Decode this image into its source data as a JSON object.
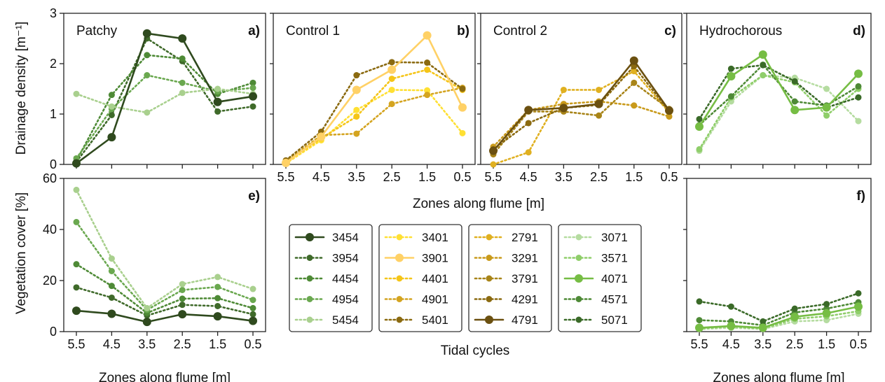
{
  "figure": {
    "shared_x_label": "Zones along flume [m]",
    "legend_title": "Tidal cycles",
    "ylabel_top": "Drainage density [m⁻¹]",
    "ylabel_bottom": "Vegetation cover [%]"
  },
  "chart_data": [
    {
      "id": "a",
      "type": "line",
      "title": "Patchy",
      "panel_label": "a)",
      "x": [
        5.5,
        4.5,
        3.5,
        2.5,
        1.5,
        0.5
      ],
      "xtick_labels": [
        "5.5",
        "4.5",
        "3.5",
        "2.5",
        "1.5",
        "0.5"
      ],
      "ylim": [
        0,
        3
      ],
      "yticks": [
        0,
        1,
        2,
        3
      ],
      "ylabel": "Drainage density [m⁻¹]",
      "series": [
        {
          "name": "3454",
          "color": "#2f4a1e",
          "style": "solid",
          "values": [
            0.02,
            0.54,
            2.6,
            2.5,
            1.24,
            1.35
          ]
        },
        {
          "name": "3954",
          "color": "#3f6a2a",
          "style": "dotted",
          "values": [
            0.05,
            0.98,
            2.5,
            2.05,
            1.05,
            1.15
          ]
        },
        {
          "name": "4454",
          "color": "#4e8a36",
          "style": "dotted",
          "values": [
            0.07,
            1.38,
            2.17,
            2.1,
            1.4,
            1.62
          ]
        },
        {
          "name": "4954",
          "color": "#6aa84f",
          "style": "dotted",
          "values": [
            0.12,
            1.1,
            1.77,
            1.62,
            1.45,
            1.52
          ]
        },
        {
          "name": "5454",
          "color": "#a9d08e",
          "style": "dotted",
          "values": [
            1.4,
            1.15,
            1.03,
            1.42,
            1.5,
            1.4
          ]
        }
      ]
    },
    {
      "id": "b",
      "type": "line",
      "title": "Control 1",
      "panel_label": "b)",
      "x": [
        5.5,
        4.5,
        3.5,
        2.5,
        1.5,
        0.5
      ],
      "xtick_labels": [
        "5.5",
        "4.5",
        "3.5",
        "2.5",
        "1.5",
        "0.5"
      ],
      "ylim": [
        0,
        3
      ],
      "series": [
        {
          "name": "3401",
          "color": "#ffe033",
          "style": "dotted",
          "values": [
            0.02,
            0.48,
            1.08,
            1.48,
            1.47,
            0.62
          ]
        },
        {
          "name": "3901",
          "color": "#ffd166",
          "style": "solid",
          "values": [
            0.03,
            0.55,
            1.48,
            1.88,
            2.56,
            1.13
          ]
        },
        {
          "name": "4401",
          "color": "#f5c518",
          "style": "dotted",
          "values": [
            0.04,
            0.52,
            0.95,
            1.7,
            1.88,
            1.48
          ]
        },
        {
          "name": "4901",
          "color": "#d4a420",
          "style": "dotted",
          "values": [
            0.06,
            0.58,
            0.61,
            1.2,
            1.38,
            1.52
          ]
        },
        {
          "name": "5401",
          "color": "#8b6a10",
          "style": "dotted",
          "values": [
            0.08,
            0.65,
            1.77,
            2.03,
            2.02,
            1.5
          ]
        }
      ]
    },
    {
      "id": "c",
      "type": "line",
      "title": "Control 2",
      "panel_label": "c)",
      "x": [
        5.5,
        4.5,
        3.5,
        2.5,
        1.5,
        0.5
      ],
      "xtick_labels": [
        "5.5",
        "4.5",
        "3.5",
        "2.5",
        "1.5",
        "0.5"
      ],
      "ylim": [
        0,
        3
      ],
      "series": [
        {
          "name": "2791",
          "color": "#e0b020",
          "style": "dotted",
          "values": [
            0.0,
            0.24,
            1.48,
            1.48,
            1.85,
            1.03
          ]
        },
        {
          "name": "3291",
          "color": "#c99a1a",
          "style": "dotted",
          "values": [
            0.35,
            1.08,
            1.2,
            1.25,
            1.17,
            0.95
          ]
        },
        {
          "name": "3791",
          "color": "#a88418",
          "style": "dotted",
          "values": [
            0.2,
            1.05,
            1.05,
            0.97,
            1.62,
            1.1
          ]
        },
        {
          "name": "4291",
          "color": "#8b6a10",
          "style": "dotted",
          "values": [
            0.3,
            0.82,
            1.12,
            1.18,
            1.95,
            1.05
          ]
        },
        {
          "name": "4791",
          "color": "#6b5010",
          "style": "solid",
          "values": [
            0.27,
            1.08,
            1.12,
            1.2,
            2.06,
            1.07
          ]
        }
      ]
    },
    {
      "id": "d",
      "type": "line",
      "title": "Hydrochorous",
      "panel_label": "d)",
      "x": [
        5.5,
        4.5,
        3.5,
        2.5,
        1.5,
        0.5
      ],
      "xtick_labels": [
        "5.5",
        "4.5",
        "3.5",
        "2.5",
        "1.5",
        "0.5"
      ],
      "ylim": [
        0,
        3
      ],
      "series": [
        {
          "name": "3071",
          "color": "#b5dca0",
          "style": "dotted",
          "values": [
            0.27,
            1.25,
            1.77,
            1.72,
            1.5,
            0.86
          ]
        },
        {
          "name": "3571",
          "color": "#8fce6a",
          "style": "dotted",
          "values": [
            0.3,
            1.33,
            1.77,
            1.63,
            0.97,
            1.5
          ]
        },
        {
          "name": "4071",
          "color": "#76bd44",
          "style": "solid",
          "values": [
            0.75,
            1.75,
            2.18,
            1.08,
            1.13,
            1.8
          ]
        },
        {
          "name": "4571",
          "color": "#4e8a36",
          "style": "dotted",
          "values": [
            0.78,
            1.35,
            1.98,
            1.25,
            1.17,
            1.55
          ]
        },
        {
          "name": "5071",
          "color": "#3a6a28",
          "style": "dotted",
          "values": [
            0.9,
            1.9,
            1.97,
            1.65,
            1.13,
            1.33
          ]
        }
      ]
    },
    {
      "id": "e",
      "type": "line",
      "panel_label": "e)",
      "x": [
        5.5,
        4.5,
        3.5,
        2.5,
        1.5,
        0.5
      ],
      "xtick_labels": [
        "5.5",
        "4.5",
        "3.5",
        "2.5",
        "1.5",
        "0.5"
      ],
      "ylim": [
        0,
        60
      ],
      "yticks": [
        0,
        20,
        40,
        60
      ],
      "xlabel": "Zones along flume [m]",
      "ylabel": "Vegetation cover [%]",
      "series": [
        {
          "name": "3454",
          "color": "#2f4a1e",
          "style": "solid",
          "values": [
            8.2,
            7.0,
            3.8,
            6.8,
            6.0,
            4.2
          ]
        },
        {
          "name": "3954",
          "color": "#3f6a2a",
          "style": "dotted",
          "values": [
            17.3,
            13.3,
            6.3,
            10.5,
            10.0,
            6.8
          ]
        },
        {
          "name": "4454",
          "color": "#4e8a36",
          "style": "dotted",
          "values": [
            26.4,
            17.9,
            7.3,
            12.9,
            13.1,
            9.2
          ]
        },
        {
          "name": "4954",
          "color": "#6aa84f",
          "style": "dotted",
          "values": [
            42.9,
            23.7,
            8.5,
            16.3,
            17.5,
            12.4
          ]
        },
        {
          "name": "5454",
          "color": "#a9d08e",
          "style": "dotted",
          "values": [
            55.5,
            28.6,
            9.2,
            18.6,
            21.4,
            16.7
          ]
        }
      ]
    },
    {
      "id": "f",
      "type": "line",
      "panel_label": "f)",
      "x": [
        5.5,
        4.5,
        3.5,
        2.5,
        1.5,
        0.5
      ],
      "xtick_labels": [
        "5.5",
        "4.5",
        "3.5",
        "2.5",
        "1.5",
        "0.5"
      ],
      "ylim": [
        0,
        60
      ],
      "xlabel": "Zones along flume [m]",
      "series": [
        {
          "name": "3071",
          "color": "#b5dca0",
          "style": "dotted",
          "values": [
            1.0,
            1.5,
            1.0,
            4.0,
            4.5,
            7.0
          ]
        },
        {
          "name": "3571",
          "color": "#8fce6a",
          "style": "dotted",
          "values": [
            1.2,
            2.0,
            1.2,
            5.0,
            6.0,
            8.0
          ]
        },
        {
          "name": "4071",
          "color": "#76bd44",
          "style": "solid",
          "values": [
            1.5,
            2.2,
            1.5,
            5.8,
            7.2,
            9.8
          ]
        },
        {
          "name": "4571",
          "color": "#4e8a36",
          "style": "dotted",
          "values": [
            4.5,
            4.0,
            2.5,
            7.5,
            9.0,
            11.5
          ]
        },
        {
          "name": "5071",
          "color": "#3a6a28",
          "style": "dotted",
          "values": [
            11.8,
            9.8,
            4.0,
            9.0,
            10.8,
            15.0
          ]
        }
      ]
    }
  ],
  "legend": {
    "groups": [
      [
        {
          "label": "3454",
          "color": "#2f4a1e",
          "style": "solid"
        },
        {
          "label": "3954",
          "color": "#3f6a2a",
          "style": "dotted"
        },
        {
          "label": "4454",
          "color": "#4e8a36",
          "style": "dotted"
        },
        {
          "label": "4954",
          "color": "#6aa84f",
          "style": "dotted"
        },
        {
          "label": "5454",
          "color": "#a9d08e",
          "style": "dotted"
        }
      ],
      [
        {
          "label": "3401",
          "color": "#ffe033",
          "style": "dotted"
        },
        {
          "label": "3901",
          "color": "#ffd166",
          "style": "solid"
        },
        {
          "label": "4401",
          "color": "#f5c518",
          "style": "dotted"
        },
        {
          "label": "4901",
          "color": "#d4a420",
          "style": "dotted"
        },
        {
          "label": "5401",
          "color": "#8b6a10",
          "style": "dotted"
        }
      ],
      [
        {
          "label": "2791",
          "color": "#e0b020",
          "style": "dotted"
        },
        {
          "label": "3291",
          "color": "#c99a1a",
          "style": "dotted"
        },
        {
          "label": "3791",
          "color": "#a88418",
          "style": "dotted"
        },
        {
          "label": "4291",
          "color": "#8b6a10",
          "style": "dotted"
        },
        {
          "label": "4791",
          "color": "#6b5010",
          "style": "solid"
        }
      ],
      [
        {
          "label": "3071",
          "color": "#b5dca0",
          "style": "dotted"
        },
        {
          "label": "3571",
          "color": "#8fce6a",
          "style": "dotted"
        },
        {
          "label": "4071",
          "color": "#76bd44",
          "style": "solid"
        },
        {
          "label": "4571",
          "color": "#4e8a36",
          "style": "dotted"
        },
        {
          "label": "5071",
          "color": "#3a6a28",
          "style": "dotted"
        }
      ]
    ]
  }
}
